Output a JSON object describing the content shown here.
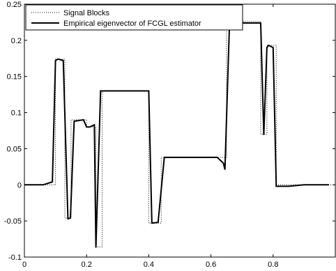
{
  "chart_data": {
    "type": "line",
    "title": "",
    "xlabel": "",
    "ylabel": "",
    "xlim": [
      0,
      1
    ],
    "ylim": [
      -0.1,
      0.25
    ],
    "grid": false,
    "legend_position": "top-left",
    "xticks": [
      0,
      0.2,
      0.4,
      0.6,
      0.8
    ],
    "xtick_labels": [
      "0",
      "0.2",
      "0.4",
      "0.6",
      "0.8"
    ],
    "yticks": [
      -0.1,
      -0.05,
      0,
      0.05,
      0.1,
      0.15,
      0.2,
      0.25
    ],
    "ytick_labels": [
      "-0.1",
      "-0.05",
      "0",
      "0.05",
      "0.1",
      "0.15",
      "0.2",
      "0.25"
    ],
    "series": [
      {
        "name": "Signal Blocks",
        "style": "dotted",
        "color": "#000000",
        "x": [
          0,
          0.1,
          0.1,
          0.13,
          0.13,
          0.15,
          0.15,
          0.2,
          0.2,
          0.23,
          0.23,
          0.25,
          0.25,
          0.4,
          0.4,
          0.44,
          0.44,
          0.65,
          0.65,
          0.76,
          0.76,
          0.78,
          0.78,
          0.81,
          0.81,
          1.0
        ],
        "y": [
          0,
          0,
          0.174,
          0.174,
          -0.046,
          -0.046,
          0.09,
          0.09,
          0.08,
          0.08,
          -0.086,
          -0.086,
          0.13,
          0.13,
          -0.053,
          -0.053,
          0.038,
          0.038,
          0.226,
          0.226,
          0.07,
          0.07,
          0.193,
          0.193,
          0,
          0
        ]
      },
      {
        "name": "Empirical eigenvector of FCGL estimator",
        "style": "solid",
        "color": "#000000",
        "x": [
          0,
          0.04,
          0.06,
          0.09,
          0.1,
          0.108,
          0.125,
          0.14,
          0.148,
          0.16,
          0.19,
          0.2,
          0.21,
          0.225,
          0.23,
          0.245,
          0.27,
          0.4,
          0.41,
          0.43,
          0.45,
          0.52,
          0.62,
          0.64,
          0.645,
          0.66,
          0.67,
          0.7,
          0.74,
          0.76,
          0.77,
          0.78,
          0.785,
          0.8,
          0.81,
          0.82,
          0.85,
          0.9,
          0.98
        ],
        "y": [
          0,
          0,
          0,
          0.004,
          0.172,
          0.174,
          0.172,
          -0.047,
          -0.046,
          0.088,
          0.09,
          0.08,
          0.08,
          0.083,
          -0.087,
          0.13,
          0.13,
          0.13,
          -0.053,
          -0.052,
          0.038,
          0.038,
          0.038,
          0.03,
          0.021,
          0.228,
          0.226,
          0.224,
          0.224,
          0.224,
          0.069,
          0.19,
          0.193,
          0.19,
          -0.002,
          -0.002,
          -0.002,
          0,
          0
        ]
      }
    ]
  }
}
